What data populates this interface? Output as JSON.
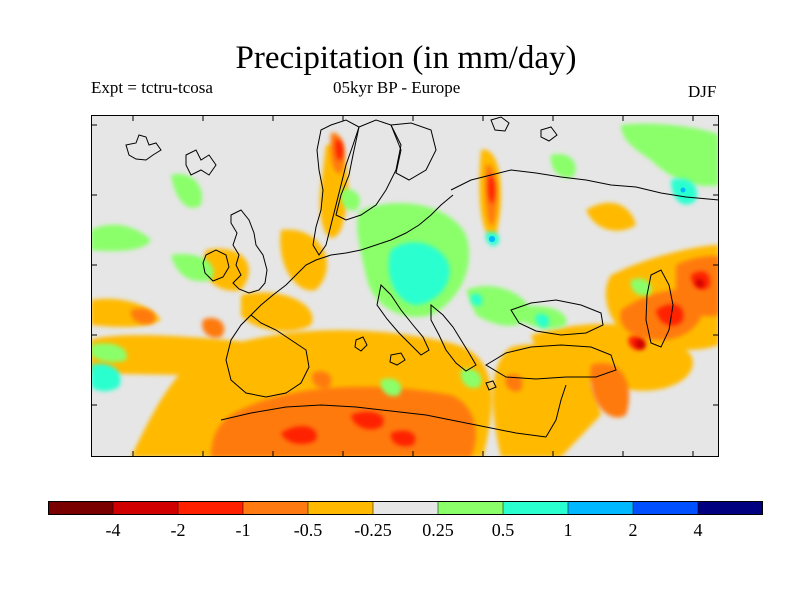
{
  "title": "Precipitation (in mm/day)",
  "subtitle_left": "Expt = tctru-tcosa",
  "subtitle_center": "05kyr BP - Europe",
  "subtitle_right": "DJF",
  "colorbar": {
    "colors": [
      "#7a0000",
      "#d00000",
      "#ff2000",
      "#ff7a10",
      "#ffba00",
      "#e6e6e6",
      "#8aff6a",
      "#2affd0",
      "#00b8ff",
      "#0050ff",
      "#000080"
    ],
    "labels": [
      "-4",
      "-2",
      "-1",
      "-0.5",
      "-0.25",
      "0.25",
      "0.5",
      "1",
      "2",
      "4"
    ]
  }
}
